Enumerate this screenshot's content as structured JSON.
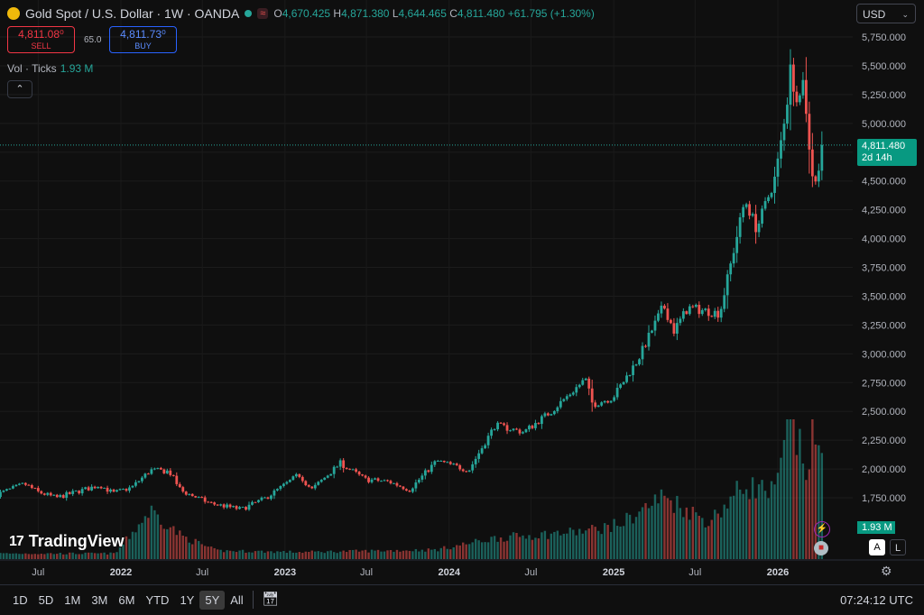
{
  "header": {
    "symbol": "Gold Spot / U.S. Dollar · 1W · OANDA",
    "wave_icon": "≈",
    "open_label": "O",
    "open": "4,670.425",
    "high_label": "H",
    "high": "4,871.380",
    "low_label": "L",
    "low": "4,644.465",
    "close_label": "C",
    "close": "4,811.480",
    "change": "+61.795 (+1.30%)"
  },
  "trade": {
    "sell_price": "4,811.08⁰",
    "sell_label": "SELL",
    "spread": "65.0",
    "buy_price": "4,811.73⁰",
    "buy_label": "BUY"
  },
  "volume_legend": {
    "label": "Vol · Ticks",
    "value": "1.93 M",
    "collapse_icon": "⌃"
  },
  "currency": {
    "value": "USD",
    "chevron_icon": "⌄"
  },
  "price_label": {
    "price": "4,811.480",
    "countdown": "2d 14h"
  },
  "volume_label": "1.93 M",
  "logo": {
    "mark": "17",
    "text": "TradingView"
  },
  "event_icons": [
    "lightning-icon",
    "us-flag-icon"
  ],
  "scale_buttons": {
    "auto": "A",
    "log": "L"
  },
  "settings_icon": "gear-icon",
  "time_ranges": [
    "1D",
    "5D",
    "1M",
    "3M",
    "6M",
    "YTD",
    "1Y",
    "5Y",
    "All"
  ],
  "selected_range": "5Y",
  "date_picker_icon": "calendar-icon",
  "clock": "07:24:12 UTC",
  "colors": {
    "up": "#26a69a",
    "down": "#ef5350",
    "background": "#0f0f0f",
    "price_line": "#26a69a"
  },
  "chart_data": {
    "type": "candlestick",
    "y_axis_ticks": [
      "1,750.000",
      "2,000.000",
      "2,250.000",
      "2,500.000",
      "2,750.000",
      "3,000.000",
      "3,250.000",
      "3,500.000",
      "3,750.000",
      "4,000.000",
      "4,250.000",
      "4,500.000",
      "5,000.000",
      "5,250.000",
      "5,500.000",
      "5,750.000"
    ],
    "x_axis_ticks": [
      "Jul",
      "2022",
      "Jul",
      "2023",
      "Jul",
      "2024",
      "Jul",
      "2025",
      "Jul",
      "2026"
    ],
    "x_tick_dates": [
      "2021-07-01",
      "2022-01-01",
      "2022-07-01",
      "2023-01-01",
      "2023-07-01",
      "2024-01-01",
      "2024-07-01",
      "2025-01-01",
      "2025-07-01",
      "2026-01-01"
    ],
    "ylim": [
      1600,
      5850
    ],
    "current_price": 4811.48,
    "price_anchors": [
      [
        "2021-04-01",
        1780
      ],
      [
        "2021-06-01",
        1870
      ],
      [
        "2021-07-01",
        1800
      ],
      [
        "2021-08-10",
        1750
      ],
      [
        "2021-11-15",
        1860
      ],
      [
        "2021-12-15",
        1790
      ],
      [
        "2022-01-25",
        1840
      ],
      [
        "2022-03-08",
        1990
      ],
      [
        "2022-04-18",
        1980
      ],
      [
        "2022-05-15",
        1810
      ],
      [
        "2022-07-20",
        1700
      ],
      [
        "2022-09-26",
        1650
      ],
      [
        "2022-11-20",
        1750
      ],
      [
        "2023-02-01",
        1950
      ],
      [
        "2023-03-01",
        1820
      ],
      [
        "2023-05-04",
        2050
      ],
      [
        "2023-06-28",
        1910
      ],
      [
        "2023-08-20",
        1890
      ],
      [
        "2023-10-05",
        1820
      ],
      [
        "2023-12-04",
        2070
      ],
      [
        "2024-02-14",
        1990
      ],
      [
        "2024-04-12",
        2380
      ],
      [
        "2024-06-15",
        2320
      ],
      [
        "2024-08-15",
        2500
      ],
      [
        "2024-10-30",
        2780
      ],
      [
        "2024-11-15",
        2560
      ],
      [
        "2024-12-30",
        2620
      ],
      [
        "2025-02-24",
        2950
      ],
      [
        "2025-04-22",
        3420
      ],
      [
        "2025-05-15",
        3200
      ],
      [
        "2025-06-15",
        3400
      ],
      [
        "2025-08-25",
        3350
      ],
      [
        "2025-10-20",
        4340
      ],
      [
        "2025-11-15",
        4080
      ],
      [
        "2025-12-26",
        4530
      ],
      [
        "2026-01-20",
        5100
      ],
      [
        "2026-01-29",
        5550
      ],
      [
        "2026-02-06",
        5200
      ],
      [
        "2026-02-28",
        5380
      ],
      [
        "2026-03-15",
        4600
      ],
      [
        "2026-03-29",
        4500
      ],
      [
        "2026-04-10",
        4811.48
      ]
    ],
    "volume_anchors": [
      [
        "2021-04-01",
        0.12
      ],
      [
        "2021-12-20",
        0.12
      ],
      [
        "2022-03-08",
        1.05
      ],
      [
        "2022-05-15",
        0.5
      ],
      [
        "2022-08-01",
        0.18
      ],
      [
        "2023-02-01",
        0.15
      ],
      [
        "2023-12-04",
        0.2
      ],
      [
        "2024-04-12",
        0.45
      ],
      [
        "2024-10-30",
        0.6
      ],
      [
        "2025-01-15",
        0.75
      ],
      [
        "2025-04-22",
        1.35
      ],
      [
        "2025-08-01",
        0.8
      ],
      [
        "2025-10-20",
        1.6
      ],
      [
        "2025-12-26",
        1.4
      ],
      [
        "2026-01-29",
        3.0
      ],
      [
        "2026-03-05",
        1.9
      ],
      [
        "2026-03-22",
        2.7
      ],
      [
        "2026-04-10",
        1.93
      ]
    ]
  }
}
